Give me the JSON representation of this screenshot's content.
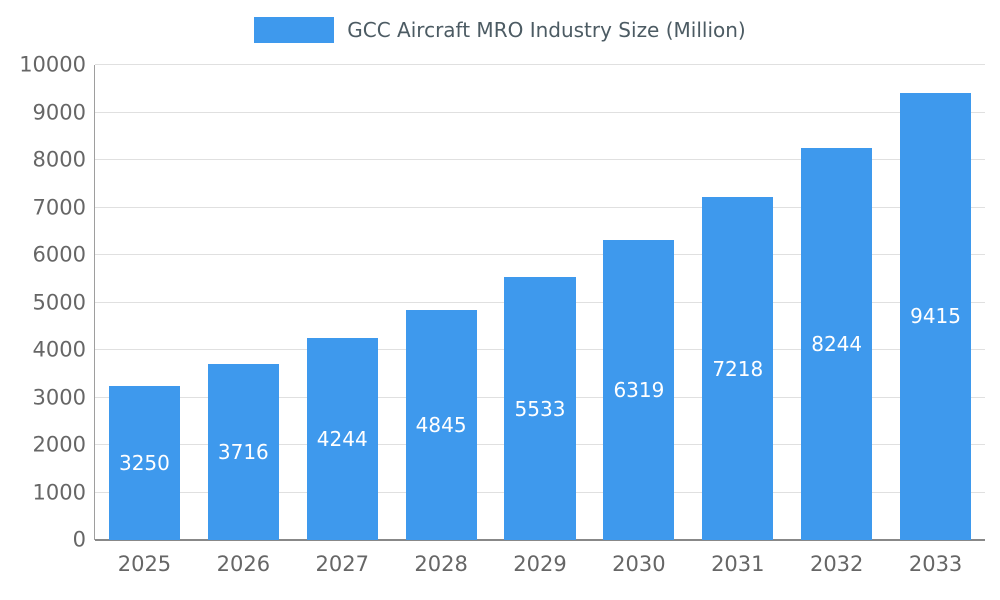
{
  "legend": {
    "title": "GCC Aircraft MRO Industry Size (Million)"
  },
  "chart_data": {
    "type": "bar",
    "title": "GCC Aircraft MRO Industry Size (Million)",
    "categories": [
      "2025",
      "2026",
      "2027",
      "2028",
      "2029",
      "2030",
      "2031",
      "2032",
      "2033"
    ],
    "values": [
      3250,
      3716,
      4244,
      4845,
      5533,
      6319,
      7218,
      8244,
      9415
    ],
    "xlabel": "",
    "ylabel": "",
    "ylim": [
      0,
      10000
    ],
    "ytick_step": 1000,
    "grid": true,
    "legend_position": "top",
    "colors": {
      "bar": "#3E99ED",
      "bar_label_text": "#ffffff",
      "axis_text": "#666666",
      "title_text": "#4C5B63",
      "gridline": "#e0e0e0",
      "axis_line": "#9e9e9e",
      "baseline": "#888888"
    }
  }
}
